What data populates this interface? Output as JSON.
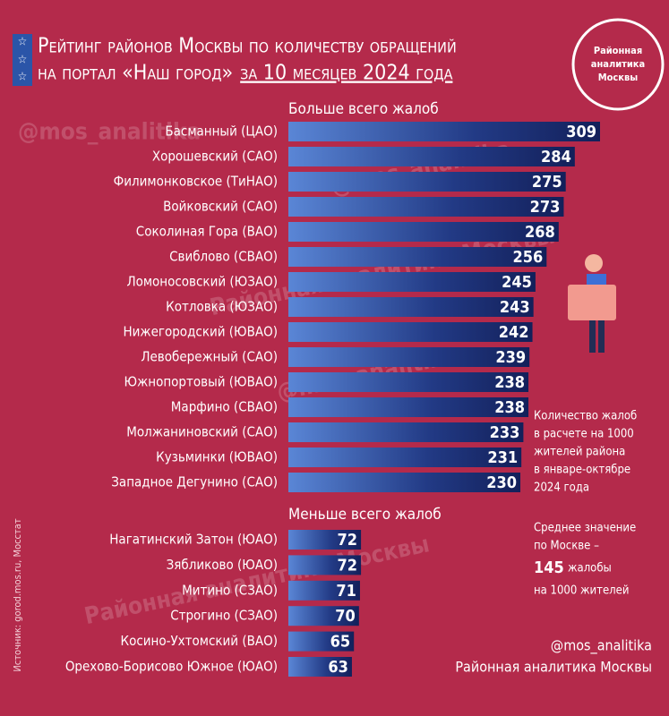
{
  "header": {
    "line1": "Рейтинг районов Москвы по количеству обращений",
    "line2a": "на портал «Наш город»",
    "line2b": "за 10 месяцев 2024 года"
  },
  "logo": [
    "Районная",
    "аналитика",
    "Москвы"
  ],
  "watermarks": [
    "@mos_analitika",
    "Районная аналитика Москвы"
  ],
  "chart_data": [
    {
      "type": "bar",
      "title": "Больше всего жалоб",
      "color": "#1c2f6e",
      "categories": [
        "Басманный (ЦАО)",
        "Хорошевский (САО)",
        "Филимонковское (ТиНАО)",
        "Войковский (САО)",
        "Соколиная Гора (ВАО)",
        "Свиблово (СВАО)",
        "Ломоносовский (ЮЗАО)",
        "Котловка (ЮЗАО)",
        "Нижегородский (ЮВАО)",
        "Левобережный (САО)",
        "Южнопортовый (ЮВАО)",
        "Марфино (СВАО)",
        "Молжаниновский (САО)",
        "Кузьминки (ЮВАО)",
        "Западное Дегунино (САО)"
      ],
      "values": [
        309,
        284,
        275,
        273,
        268,
        256,
        245,
        243,
        242,
        239,
        238,
        238,
        233,
        231,
        230
      ]
    },
    {
      "type": "bar",
      "title": "Меньше всего жалоб",
      "color": "#1c2f6e",
      "categories": [
        "Нагатинский Затон (ЮАО)",
        "Зябликово (ЮАО)",
        "Митино (СЗАО)",
        "Строгино (СЗАО)",
        "Косино-Ухтомский (ВАО)",
        "Орехово-Борисово Южное (ЮАО)"
      ],
      "values": [
        72,
        72,
        71,
        70,
        65,
        63
      ]
    }
  ],
  "note": [
    "Количество жалоб",
    "в расчете на 1000",
    "жителей района",
    "в январе-октябре",
    "2024 года"
  ],
  "average": {
    "line1": "Среднее значение",
    "line2": "по Москве –",
    "value": "145",
    "unit": "жалобы",
    "line4": "на 1000 жителей"
  },
  "signature": [
    "@mos_analitika",
    "Районная аналитика Москвы"
  ],
  "source": "Источник: gorod.mos.ru, Мосстат"
}
